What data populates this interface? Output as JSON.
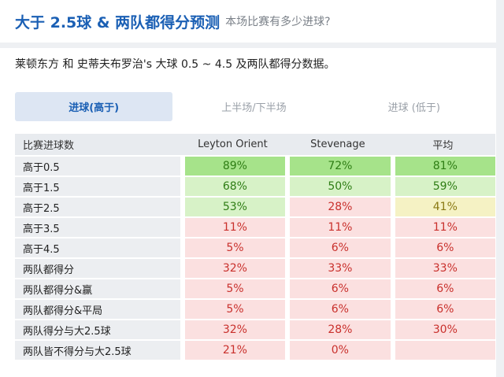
{
  "header": {
    "title": "大于 2.5球 & 两队都得分预测",
    "subtitle": "本场比赛有多少进球?"
  },
  "description": "莱顿东方 和 史蒂夫布罗治's 大球 0.5 ~ 4.5 及两队都得分数据。",
  "tabs": [
    {
      "label": "进球(高于)",
      "active": true
    },
    {
      "label": "上半场/下半场",
      "active": false
    },
    {
      "label": "进球 (低于)",
      "active": false
    }
  ],
  "table": {
    "headers": [
      "比赛进球数",
      "Leyton Orient",
      "Stevenage",
      "平均"
    ],
    "rows": [
      {
        "label": "高于0.5",
        "values": [
          "89%",
          "72%",
          "81%"
        ],
        "levels": [
          "green-strong",
          "green-strong",
          "green-strong"
        ]
      },
      {
        "label": "高于1.5",
        "values": [
          "68%",
          "50%",
          "59%"
        ],
        "levels": [
          "green-light",
          "green-light",
          "green-light"
        ]
      },
      {
        "label": "高于2.5",
        "values": [
          "53%",
          "28%",
          "41%"
        ],
        "levels": [
          "green-light",
          "red",
          "yellow"
        ]
      },
      {
        "label": "高于3.5",
        "values": [
          "11%",
          "11%",
          "11%"
        ],
        "levels": [
          "red",
          "red",
          "red"
        ]
      },
      {
        "label": "高于4.5",
        "values": [
          "5%",
          "6%",
          "6%"
        ],
        "levels": [
          "red",
          "red",
          "red"
        ]
      },
      {
        "label": "两队都得分",
        "values": [
          "32%",
          "33%",
          "33%"
        ],
        "levels": [
          "red",
          "red",
          "red"
        ]
      },
      {
        "label": "两队都得分&赢",
        "values": [
          "5%",
          "6%",
          "6%"
        ],
        "levels": [
          "red",
          "red",
          "red"
        ]
      },
      {
        "label": "两队都得分&平局",
        "values": [
          "5%",
          "6%",
          "6%"
        ],
        "levels": [
          "red",
          "red",
          "red"
        ]
      },
      {
        "label": "两队得分与大2.5球",
        "values": [
          "32%",
          "28%",
          "30%"
        ],
        "levels": [
          "red",
          "red",
          "red"
        ]
      },
      {
        "label": "两队皆不得分与大2.5球",
        "values": [
          "21%",
          "0%",
          ""
        ],
        "levels": [
          "red",
          "red",
          "red"
        ]
      }
    ]
  },
  "colors": {
    "title_blue": "#1a5fb4",
    "green_strong": "#a6e38a",
    "green_light": "#d7f2c7",
    "yellow": "#f5f2c4",
    "red_bg": "#fbe0e0",
    "red_text": "#c9302c",
    "green_text": "#2e7d14"
  }
}
